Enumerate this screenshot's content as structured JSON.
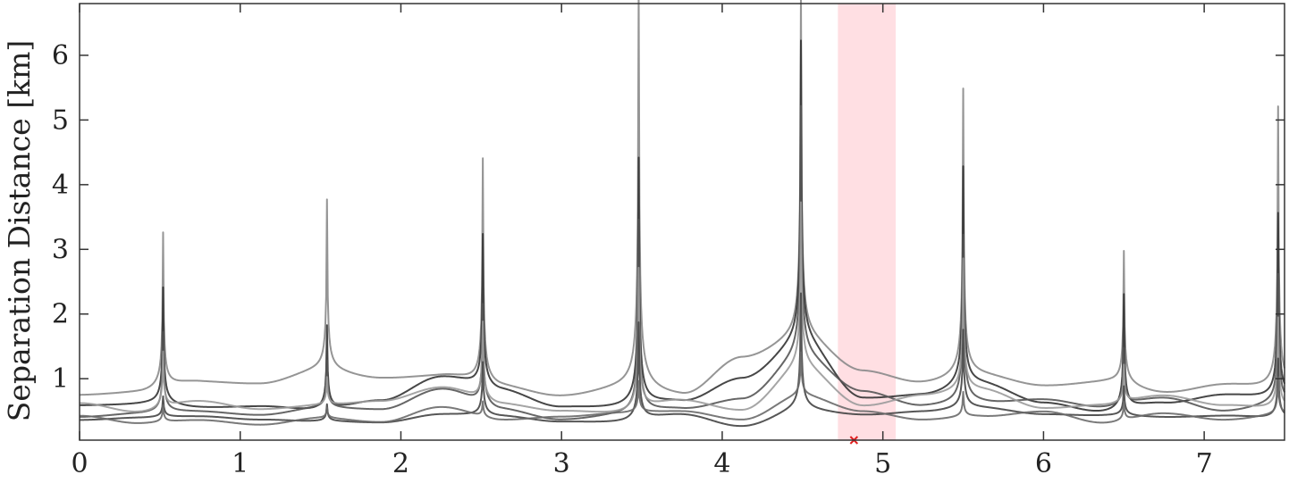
{
  "chart_data": {
    "type": "line",
    "title": "",
    "xlabel": "",
    "ylabel": "Separation Distance [km]",
    "xlim": [
      0,
      7.5
    ],
    "ylim": [
      0.05,
      6.8
    ],
    "xticks": [
      0,
      1,
      2,
      3,
      4,
      5,
      6,
      7
    ],
    "yticks": [
      1,
      2,
      3,
      4,
      5,
      6
    ],
    "grid": false,
    "highlight_band": {
      "x_range": [
        4.72,
        5.08
      ],
      "color": "#ffdfe3"
    },
    "min_marker": {
      "x": 4.82,
      "y": 0.05,
      "color": "#e02020"
    },
    "peaks": {
      "x": [
        0.52,
        1.54,
        2.51,
        3.48,
        4.49,
        5.5,
        6.5,
        7.46
      ],
      "heights": [
        [
          2.8,
          3.05,
          3.9,
          6.9,
          6.0,
          4.88,
          2.45,
          4.8
        ],
        [
          2.2,
          1.68,
          2.77,
          4.25,
          5.15,
          3.82,
          2.17,
          3.28
        ],
        [
          1.62,
          1.1,
          1.95,
          3.4,
          4.35,
          3.0,
          1.25,
          2.4
        ],
        [
          1.25,
          0.8,
          1.6,
          2.6,
          3.0,
          2.45,
          0.95,
          1.8
        ],
        [
          0.68,
          0.62,
          1.2,
          1.9,
          2.2,
          1.6,
          0.82,
          1.3
        ],
        [
          0.62,
          0.52,
          0.6,
          0.85,
          1.05,
          0.75,
          0.65,
          0.95
        ]
      ]
    },
    "series": [
      {
        "color": "#8a8a8a",
        "values": [
          0.7,
          0.72,
          0.88,
          0.85,
          1.02,
          0.92,
          0.95,
          0.75,
          0.62,
          0.7,
          0.62,
          1.2,
          1.45,
          1.0,
          0.82,
          0.92,
          0.8,
          0.85,
          0.7,
          0.82,
          0.72
        ]
      },
      {
        "color": "#333333",
        "values": [
          0.55,
          0.55,
          0.5,
          0.52,
          0.45,
          0.6,
          0.95,
          0.72,
          0.48,
          0.45,
          0.55,
          0.9,
          1.38,
          0.6,
          0.65,
          0.8,
          0.55,
          0.4,
          0.55,
          0.68,
          0.6
        ]
      },
      {
        "color": "#555555",
        "values": [
          0.38,
          0.42,
          0.45,
          0.4,
          0.5,
          0.48,
          0.78,
          0.45,
          0.3,
          0.35,
          0.45,
          0.6,
          1.18,
          0.72,
          0.5,
          0.55,
          0.62,
          0.5,
          0.65,
          0.45,
          0.55
        ]
      },
      {
        "color": "#9b9b9b",
        "values": [
          0.6,
          0.45,
          0.62,
          0.5,
          0.55,
          0.62,
          0.82,
          0.55,
          0.45,
          0.4,
          0.6,
          0.45,
          1.05,
          0.52,
          0.68,
          0.75,
          0.5,
          0.55,
          0.7,
          0.55,
          0.48
        ]
      },
      {
        "color": "#444444",
        "values": [
          0.35,
          0.38,
          0.4,
          0.35,
          0.32,
          0.3,
          0.42,
          0.38,
          0.3,
          0.28,
          0.4,
          0.22,
          0.45,
          0.4,
          0.45,
          0.5,
          0.42,
          0.4,
          0.38,
          0.4,
          0.35
        ]
      },
      {
        "color": "#6a6a6a",
        "values": [
          0.42,
          0.3,
          0.35,
          0.28,
          0.38,
          0.32,
          0.55,
          0.35,
          0.4,
          0.45,
          0.48,
          0.35,
          0.7,
          0.48,
          0.35,
          0.4,
          0.48,
          0.3,
          0.45,
          0.35,
          0.42
        ]
      }
    ]
  }
}
